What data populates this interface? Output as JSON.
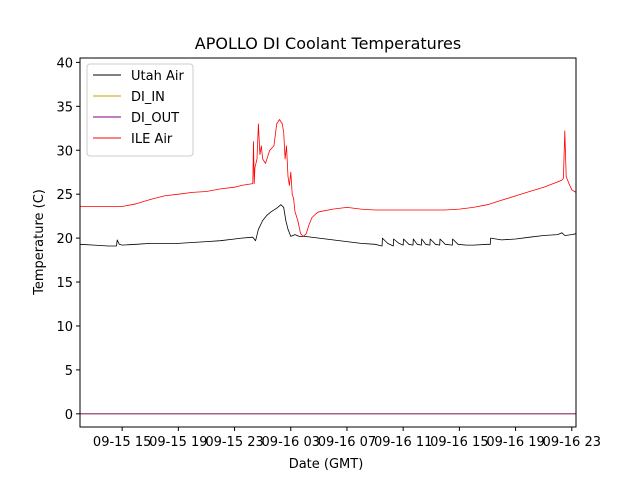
{
  "chart_data": {
    "type": "line",
    "title": "APOLLO DI Coolant Temperatures",
    "xlabel": "Date (GMT)",
    "ylabel": "Temperature (C)",
    "x_unit": "hours since 09-15 12:00 GMT",
    "xlim": [
      0,
      35.3
    ],
    "ylim": [
      -1.5,
      40.5
    ],
    "x_ticks": [
      {
        "value": 3,
        "label": "09-15 15"
      },
      {
        "value": 7,
        "label": "09-15 19"
      },
      {
        "value": 11,
        "label": "09-15 23"
      },
      {
        "value": 15,
        "label": "09-16 03"
      },
      {
        "value": 19,
        "label": "09-16 07"
      },
      {
        "value": 23,
        "label": "09-16 11"
      },
      {
        "value": 27,
        "label": "09-16 15"
      },
      {
        "value": 31,
        "label": "09-16 19"
      },
      {
        "value": 35,
        "label": "09-16 23"
      }
    ],
    "y_ticks": [
      {
        "value": 0,
        "label": "0"
      },
      {
        "value": 5,
        "label": "5"
      },
      {
        "value": 10,
        "label": "10"
      },
      {
        "value": 15,
        "label": "15"
      },
      {
        "value": 20,
        "label": "20"
      },
      {
        "value": 25,
        "label": "25"
      },
      {
        "value": 30,
        "label": "30"
      },
      {
        "value": 35,
        "label": "35"
      },
      {
        "value": 40,
        "label": "40"
      }
    ],
    "legend_position": "top-left",
    "series": [
      {
        "name": "Utah Air",
        "color": "#000000",
        "x": [
          0,
          1,
          2,
          2.6,
          2.65,
          2.8,
          3,
          4,
          5,
          6,
          7,
          8,
          9,
          10,
          11,
          11.5,
          12.3,
          12.5,
          12.7,
          13.0,
          13.3,
          13.6,
          14.0,
          14.3,
          14.5,
          14.65,
          14.8,
          15.0,
          15.3,
          15.6,
          16,
          17,
          18,
          19,
          20,
          21,
          21.5,
          21.52,
          21.9,
          22.3,
          22.32,
          22.7,
          23.0,
          23.02,
          23.4,
          23.7,
          23.72,
          24.0,
          24.3,
          24.32,
          24.6,
          24.9,
          24.92,
          25.3,
          25.6,
          25.62,
          26,
          26.5,
          26.52,
          26.9,
          27.5,
          28,
          29,
          29.2,
          29.22,
          30,
          31,
          32,
          33,
          34,
          34.3,
          34.5,
          35,
          35.3
        ],
        "values": [
          19.3,
          19.2,
          19.1,
          19.1,
          19.8,
          19.3,
          19.2,
          19.3,
          19.4,
          19.4,
          19.4,
          19.5,
          19.6,
          19.7,
          19.9,
          20.0,
          20.1,
          19.7,
          21.0,
          22.0,
          22.6,
          23.0,
          23.4,
          23.8,
          23.5,
          22.0,
          21.0,
          20.2,
          20.4,
          20.2,
          20.2,
          20.0,
          19.8,
          19.6,
          19.4,
          19.3,
          19.1,
          20.0,
          19.4,
          19.1,
          19.9,
          19.4,
          19.2,
          19.9,
          19.3,
          19.2,
          19.9,
          19.3,
          19.2,
          19.9,
          19.3,
          19.2,
          19.9,
          19.3,
          19.2,
          19.9,
          19.3,
          19.2,
          19.9,
          19.3,
          19.2,
          19.2,
          19.3,
          19.3,
          20.0,
          19.8,
          19.9,
          20.1,
          20.3,
          20.4,
          20.6,
          20.3,
          20.4,
          20.5
        ]
      },
      {
        "name": "DI_IN",
        "color": "#c8a000",
        "x": [
          0,
          35.3
        ],
        "values": [
          0,
          0
        ]
      },
      {
        "name": "DI_OUT",
        "color": "#800080",
        "x": [
          0,
          35.3
        ],
        "values": [
          0,
          0
        ]
      },
      {
        "name": "ILE Air",
        "color": "#ff0000",
        "x": [
          0,
          1,
          2,
          3,
          4,
          5,
          6,
          7,
          8,
          9,
          10,
          11,
          11.5,
          12.3,
          12.35,
          12.4,
          12.45,
          12.6,
          12.7,
          12.8,
          12.9,
          13.0,
          13.2,
          13.5,
          13.8,
          14.0,
          14.2,
          14.4,
          14.5,
          14.6,
          14.7,
          14.8,
          14.9,
          15.0,
          15.1,
          15.2,
          15.3,
          15.5,
          15.7,
          15.9,
          16.1,
          16.3,
          16.5,
          16.8,
          17,
          18,
          19,
          20,
          21,
          22,
          23,
          24,
          25,
          26,
          27,
          28,
          29,
          30,
          31,
          32,
          33,
          34,
          34.3,
          34.4,
          34.5,
          34.6,
          34.8,
          35,
          35.3
        ],
        "values": [
          23.6,
          23.6,
          23.6,
          23.6,
          23.9,
          24.4,
          24.8,
          25.0,
          25.2,
          25.3,
          25.6,
          25.8,
          26.0,
          26.2,
          31.0,
          26.2,
          28.0,
          29.0,
          33.0,
          29.5,
          30.5,
          29.0,
          28.5,
          30.0,
          30.5,
          33.0,
          33.5,
          33.0,
          32.0,
          29.0,
          30.5,
          27.0,
          26.0,
          27.5,
          25.0,
          24.5,
          23.0,
          22.0,
          20.5,
          20.2,
          20.5,
          21.5,
          22.3,
          22.8,
          23.0,
          23.3,
          23.5,
          23.3,
          23.2,
          23.2,
          23.2,
          23.2,
          23.2,
          23.2,
          23.3,
          23.5,
          23.8,
          24.3,
          24.8,
          25.3,
          25.8,
          26.4,
          26.6,
          26.8,
          32.2,
          27.0,
          26.2,
          25.5,
          25.2
        ]
      }
    ]
  }
}
